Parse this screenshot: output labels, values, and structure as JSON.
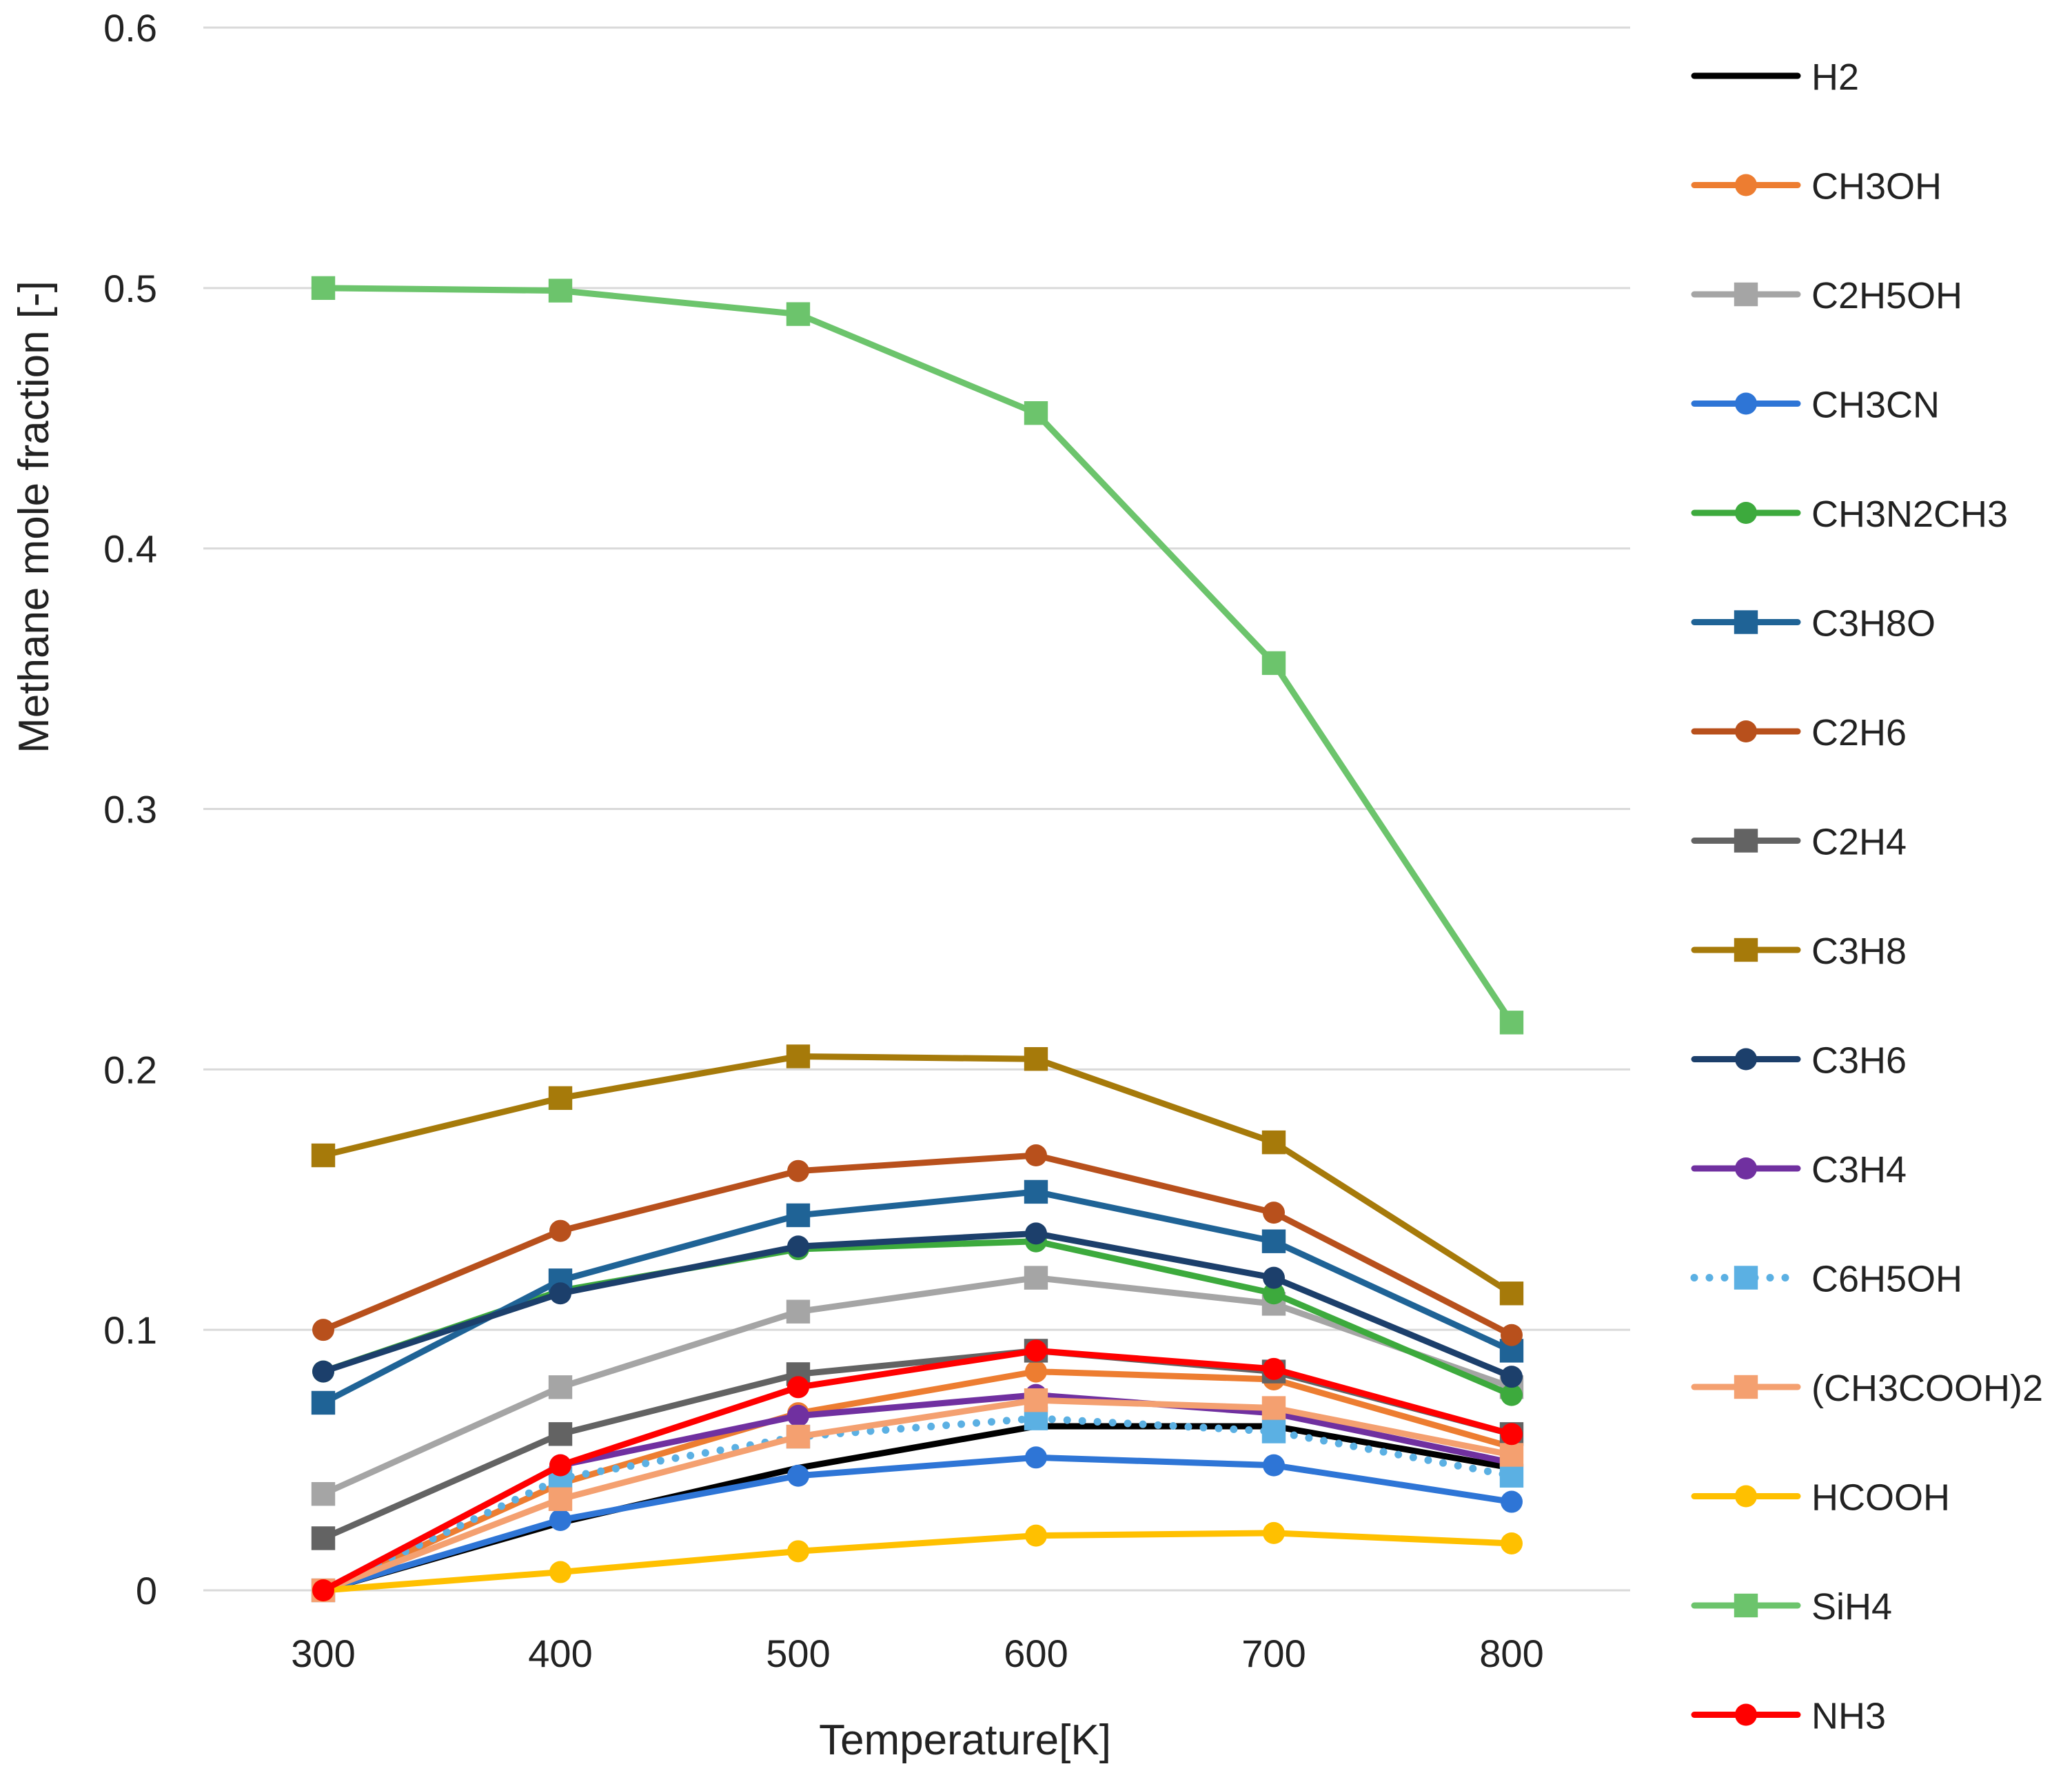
{
  "chart_data": {
    "type": "line",
    "title": "",
    "xlabel": "Temperature[K]",
    "ylabel": "Methane mole fraction [-]",
    "x": [
      300,
      400,
      500,
      600,
      700,
      800
    ],
    "xtick_labels": [
      "300",
      "400",
      "500",
      "600",
      "700",
      "800"
    ],
    "ylim": [
      0,
      0.6
    ],
    "ytick_values": [
      0,
      0.1,
      0.2,
      0.3,
      0.4,
      0.5,
      0.6
    ],
    "ytick_labels": [
      "0",
      "0.1",
      "0.2",
      "0.3",
      "0.4",
      "0.5",
      "0.6"
    ],
    "grid": true,
    "legend_position": "right",
    "series": [
      {
        "name": "H2",
        "color": "#000000",
        "marker": "none",
        "dash": "solid",
        "values": [
          0,
          0.026,
          0.047,
          0.063,
          0.063,
          0.047
        ]
      },
      {
        "name": "CH3OH",
        "color": "#ED7D31",
        "marker": "circle",
        "dash": "solid",
        "values": [
          0,
          0.041,
          0.068,
          0.084,
          0.081,
          0.055
        ]
      },
      {
        "name": "C2H5OH",
        "color": "#A5A5A5",
        "marker": "square",
        "dash": "solid",
        "values": [
          0.037,
          0.078,
          0.107,
          0.12,
          0.11,
          0.078
        ]
      },
      {
        "name": "CH3CN",
        "color": "#2E75D6",
        "marker": "circle",
        "dash": "solid",
        "values": [
          0,
          0.027,
          0.044,
          0.051,
          0.048,
          0.034
        ]
      },
      {
        "name": "CH3N2CH3",
        "color": "#3DAA3D",
        "marker": "circle",
        "dash": "solid",
        "values": [
          0.084,
          0.115,
          0.131,
          0.134,
          0.114,
          0.075
        ]
      },
      {
        "name": "C3H8O",
        "color": "#1F6396",
        "marker": "square",
        "dash": "solid",
        "values": [
          0.072,
          0.119,
          0.144,
          0.153,
          0.134,
          0.092
        ]
      },
      {
        "name": "C2H6",
        "color": "#B8501C",
        "marker": "circle",
        "dash": "solid",
        "values": [
          0.1,
          0.138,
          0.161,
          0.167,
          0.145,
          0.098
        ]
      },
      {
        "name": "C2H4",
        "color": "#636363",
        "marker": "square",
        "dash": "solid",
        "values": [
          0.02,
          0.06,
          0.083,
          0.092,
          0.084,
          0.06
        ]
      },
      {
        "name": "C3H8",
        "color": "#A67A0A",
        "marker": "square",
        "dash": "solid",
        "values": [
          0.167,
          0.189,
          0.205,
          0.204,
          0.172,
          0.114
        ]
      },
      {
        "name": "C3H6",
        "color": "#1C3F6B",
        "marker": "circle",
        "dash": "solid",
        "values": [
          0.084,
          0.114,
          0.132,
          0.137,
          0.12,
          0.082
        ]
      },
      {
        "name": "C3H4",
        "color": "#7030A0",
        "marker": "circle",
        "dash": "solid",
        "values": [
          0,
          0.048,
          0.067,
          0.075,
          0.068,
          0.049
        ]
      },
      {
        "name": "C6H5OH",
        "color": "#5BB0E3",
        "marker": "square",
        "dash": "dotted",
        "values": [
          0,
          0.043,
          0.059,
          0.066,
          0.061,
          0.044
        ]
      },
      {
        "name": "(CH3COOH)2",
        "color": "#F4A070",
        "marker": "square",
        "dash": "solid",
        "values": [
          0,
          0.035,
          0.059,
          0.073,
          0.07,
          0.052
        ]
      },
      {
        "name": "HCOOH",
        "color": "#FFC000",
        "marker": "circle",
        "dash": "solid",
        "values": [
          0,
          0.007,
          0.015,
          0.021,
          0.022,
          0.018
        ]
      },
      {
        "name": "SiH4",
        "color": "#6CC46C",
        "marker": "square",
        "dash": "solid",
        "values": [
          0.5,
          0.499,
          0.49,
          0.452,
          0.356,
          0.218
        ]
      },
      {
        "name": "NH3",
        "color": "#FF0000",
        "marker": "circle",
        "dash": "solid",
        "values": [
          0,
          0.048,
          0.078,
          0.092,
          0.085,
          0.06
        ]
      }
    ]
  }
}
